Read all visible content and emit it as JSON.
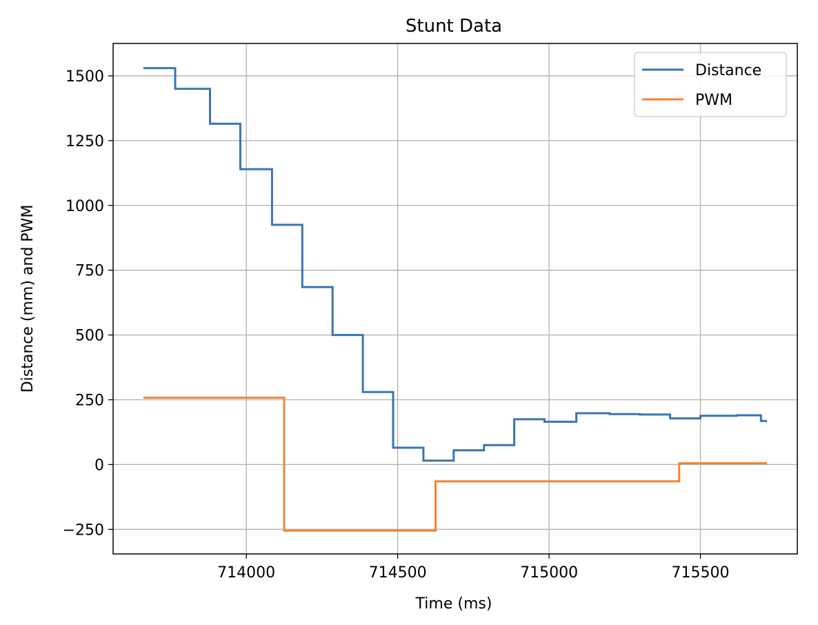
{
  "chart_data": {
    "type": "line",
    "title": "Stunt Data",
    "xlabel": "Time (ms)",
    "ylabel": "Distance (mm) and PWM",
    "xlim": [
      713560,
      715820
    ],
    "ylim": [
      -345,
      1625
    ],
    "x_ticks": [
      714000,
      714500,
      715000,
      715500
    ],
    "x_tick_labels": [
      "714000",
      "714500",
      "715000",
      "715500"
    ],
    "y_ticks": [
      -250,
      0,
      250,
      500,
      750,
      1000,
      1250,
      1500
    ],
    "y_tick_labels": [
      "−250",
      "0",
      "250",
      "500",
      "750",
      "1000",
      "1250",
      "1500"
    ],
    "grid": true,
    "legend_position": "top-right",
    "series": [
      {
        "name": "Distance",
        "color": "#3a75b0",
        "step": true,
        "x": [
          713660,
          713765,
          713880,
          713980,
          714085,
          714185,
          714285,
          714385,
          714485,
          714585,
          714685,
          714785,
          714885,
          714985,
          715090,
          715200,
          715300,
          715400,
          715500,
          715620,
          715700,
          715720
        ],
        "y": [
          1530,
          1450,
          1315,
          1140,
          925,
          685,
          500,
          280,
          65,
          15,
          55,
          75,
          175,
          165,
          198,
          195,
          193,
          178,
          188,
          190,
          168,
          168
        ]
      },
      {
        "name": "PWM",
        "color": "#ef8636",
        "step": true,
        "x": [
          713660,
          714125,
          714625,
          715430,
          715720
        ],
        "y": [
          258,
          -255,
          -65,
          5,
          5
        ]
      }
    ]
  }
}
